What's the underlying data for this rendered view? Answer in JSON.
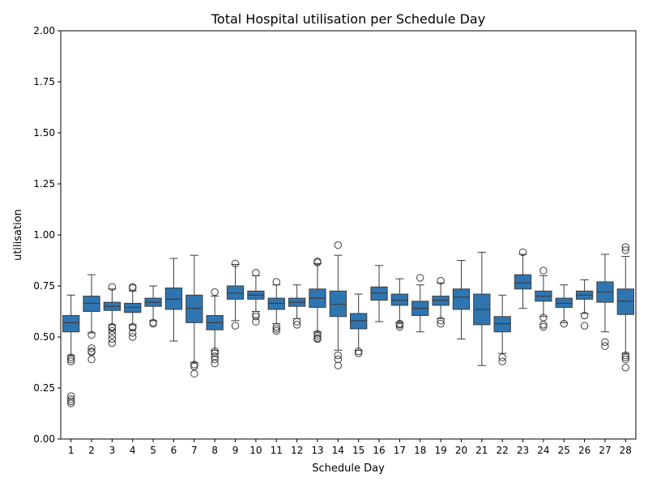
{
  "chart_data": {
    "type": "box",
    "title": "Total Hospital utilisation per Schedule Day",
    "xlabel": "Schedule Day",
    "ylabel": "utilisation",
    "ylim": [
      0.0,
      2.0
    ],
    "yticks": [
      "0.00",
      "0.25",
      "0.50",
      "0.75",
      "1.00",
      "1.25",
      "1.50",
      "1.75",
      "2.00"
    ],
    "grid": false,
    "box_color": "#2f75b0",
    "categories": [
      "1",
      "2",
      "3",
      "4",
      "5",
      "6",
      "7",
      "8",
      "9",
      "10",
      "11",
      "12",
      "13",
      "14",
      "15",
      "16",
      "17",
      "18",
      "19",
      "20",
      "21",
      "22",
      "23",
      "24",
      "25",
      "26",
      "27",
      "28"
    ],
    "boxes": [
      {
        "q1": 0.525,
        "median": 0.57,
        "q3": 0.605,
        "whislo": 0.41,
        "whishi": 0.705,
        "fliers": [
          0.4,
          0.39,
          0.38,
          0.21,
          0.195,
          0.185,
          0.175
        ]
      },
      {
        "q1": 0.625,
        "median": 0.665,
        "q3": 0.7,
        "whislo": 0.52,
        "whishi": 0.805,
        "fliers": [
          0.51,
          0.445,
          0.43,
          0.425,
          0.39
        ]
      },
      {
        "q1": 0.63,
        "median": 0.65,
        "q3": 0.67,
        "whislo": 0.56,
        "whishi": 0.735,
        "fliers": [
          0.745,
          0.55,
          0.545,
          0.53,
          0.51,
          0.49,
          0.47
        ]
      },
      {
        "q1": 0.62,
        "median": 0.645,
        "q3": 0.665,
        "whislo": 0.56,
        "whishi": 0.725,
        "fliers": [
          0.745,
          0.74,
          0.55,
          0.545,
          0.52,
          0.5
        ]
      },
      {
        "q1": 0.65,
        "median": 0.67,
        "q3": 0.69,
        "whislo": 0.58,
        "whishi": 0.75,
        "fliers": [
          0.57,
          0.565
        ]
      },
      {
        "q1": 0.635,
        "median": 0.685,
        "q3": 0.74,
        "whislo": 0.48,
        "whishi": 0.885,
        "fliers": []
      },
      {
        "q1": 0.57,
        "median": 0.64,
        "q3": 0.705,
        "whislo": 0.375,
        "whishi": 0.9,
        "fliers": [
          0.365,
          0.355,
          0.32
        ]
      },
      {
        "q1": 0.535,
        "median": 0.57,
        "q3": 0.605,
        "whislo": 0.435,
        "whishi": 0.7,
        "fliers": [
          0.72,
          0.43,
          0.42,
          0.405,
          0.39,
          0.37
        ]
      },
      {
        "q1": 0.685,
        "median": 0.715,
        "q3": 0.75,
        "whislo": 0.58,
        "whishi": 0.855,
        "fliers": [
          0.86,
          0.555
        ]
      },
      {
        "q1": 0.685,
        "median": 0.705,
        "q3": 0.725,
        "whislo": 0.625,
        "whishi": 0.8,
        "fliers": [
          0.815,
          0.61,
          0.6,
          0.575
        ]
      },
      {
        "q1": 0.635,
        "median": 0.665,
        "q3": 0.69,
        "whislo": 0.565,
        "whishi": 0.755,
        "fliers": [
          0.77,
          0.55,
          0.54,
          0.53
        ]
      },
      {
        "q1": 0.65,
        "median": 0.67,
        "q3": 0.69,
        "whislo": 0.59,
        "whishi": 0.755,
        "fliers": [
          0.575,
          0.56
        ]
      },
      {
        "q1": 0.645,
        "median": 0.69,
        "q3": 0.735,
        "whislo": 0.525,
        "whishi": 0.86,
        "fliers": [
          0.87,
          0.865,
          0.515,
          0.505,
          0.495,
          0.49
        ]
      },
      {
        "q1": 0.6,
        "median": 0.66,
        "q3": 0.725,
        "whislo": 0.435,
        "whishi": 0.9,
        "fliers": [
          0.95,
          0.41,
          0.39,
          0.36
        ]
      },
      {
        "q1": 0.54,
        "median": 0.58,
        "q3": 0.615,
        "whislo": 0.435,
        "whishi": 0.71,
        "fliers": [
          0.43,
          0.42
        ]
      },
      {
        "q1": 0.68,
        "median": 0.715,
        "q3": 0.745,
        "whislo": 0.575,
        "whishi": 0.85,
        "fliers": []
      },
      {
        "q1": 0.655,
        "median": 0.68,
        "q3": 0.71,
        "whislo": 0.57,
        "whishi": 0.785,
        "fliers": [
          0.565,
          0.56,
          0.55
        ]
      },
      {
        "q1": 0.605,
        "median": 0.64,
        "q3": 0.675,
        "whislo": 0.525,
        "whishi": 0.755,
        "fliers": [
          0.79
        ]
      },
      {
        "q1": 0.655,
        "median": 0.68,
        "q3": 0.7,
        "whislo": 0.59,
        "whishi": 0.765,
        "fliers": [
          0.775,
          0.58,
          0.565
        ]
      },
      {
        "q1": 0.635,
        "median": 0.695,
        "q3": 0.735,
        "whislo": 0.49,
        "whishi": 0.875,
        "fliers": []
      },
      {
        "q1": 0.56,
        "median": 0.635,
        "q3": 0.71,
        "whislo": 0.36,
        "whishi": 0.915,
        "fliers": []
      },
      {
        "q1": 0.525,
        "median": 0.565,
        "q3": 0.6,
        "whislo": 0.42,
        "whishi": 0.705,
        "fliers": [
          0.4,
          0.38
        ]
      },
      {
        "q1": 0.735,
        "median": 0.765,
        "q3": 0.805,
        "whislo": 0.64,
        "whishi": 0.905,
        "fliers": [
          0.915
        ]
      },
      {
        "q1": 0.675,
        "median": 0.7,
        "q3": 0.725,
        "whislo": 0.6,
        "whishi": 0.8,
        "fliers": [
          0.825,
          0.595,
          0.56,
          0.55
        ]
      },
      {
        "q1": 0.645,
        "median": 0.665,
        "q3": 0.69,
        "whislo": 0.57,
        "whishi": 0.755,
        "fliers": [
          0.565
        ]
      },
      {
        "q1": 0.685,
        "median": 0.705,
        "q3": 0.725,
        "whislo": 0.615,
        "whishi": 0.78,
        "fliers": [
          0.605,
          0.555
        ]
      },
      {
        "q1": 0.67,
        "median": 0.72,
        "q3": 0.77,
        "whislo": 0.525,
        "whishi": 0.905,
        "fliers": [
          0.475,
          0.455
        ]
      },
      {
        "q1": 0.61,
        "median": 0.675,
        "q3": 0.735,
        "whislo": 0.42,
        "whishi": 0.895,
        "fliers": [
          0.94,
          0.925,
          0.41,
          0.4,
          0.39,
          0.35
        ]
      }
    ]
  }
}
